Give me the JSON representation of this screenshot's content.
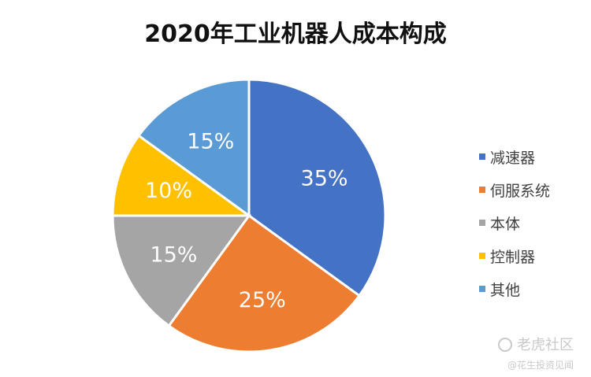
{
  "chart_data": {
    "type": "pie",
    "title": "2020年工业机器人成本构成",
    "slices": [
      {
        "label": "减速器",
        "value": 35,
        "display": "35%",
        "color": "#4472C4"
      },
      {
        "label": "伺服系统",
        "value": 25,
        "display": "25%",
        "color": "#ED7D31"
      },
      {
        "label": "本体",
        "value": 15,
        "display": "15%",
        "color": "#A5A5A5"
      },
      {
        "label": "控制器",
        "value": 10,
        "display": "10%",
        "color": "#FFC000"
      },
      {
        "label": "其他",
        "value": 15,
        "display": "15%",
        "color": "#5B9BD5"
      }
    ],
    "legend_position": "right"
  },
  "watermark": {
    "main": "老虎社区",
    "sub": "@花生投资见闻"
  }
}
